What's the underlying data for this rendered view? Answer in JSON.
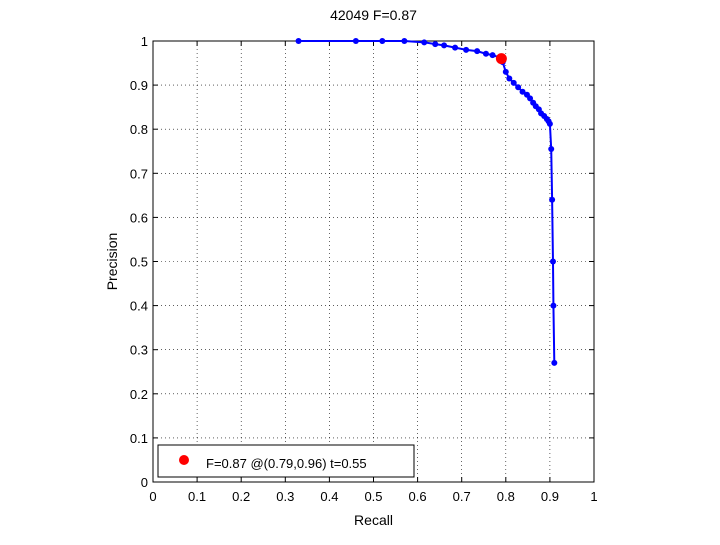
{
  "chart_data": {
    "type": "line",
    "title": "42049 F=0.87",
    "xlabel": "Recall",
    "ylabel": "Precision",
    "xlim": [
      0,
      1
    ],
    "ylim": [
      0,
      1
    ],
    "grid": true,
    "x_ticks": [
      0,
      0.1,
      0.2,
      0.3,
      0.4,
      0.5,
      0.6,
      0.7,
      0.8,
      0.9,
      1
    ],
    "y_ticks": [
      0,
      0.1,
      0.2,
      0.3,
      0.4,
      0.5,
      0.6,
      0.7,
      0.8,
      0.9,
      1
    ],
    "x_tick_labels": [
      "0",
      "0.1",
      "0.2",
      "0.3",
      "0.4",
      "0.5",
      "0.6",
      "0.7",
      "0.8",
      "0.9",
      "1"
    ],
    "y_tick_labels": [
      "0",
      "0.1",
      "0.2",
      "0.3",
      "0.4",
      "0.5",
      "0.6",
      "0.7",
      "0.8",
      "0.9",
      "1"
    ],
    "series": [
      {
        "color": "#0000ff",
        "points": [
          [
            0.33,
            1.0
          ],
          [
            0.46,
            1.0
          ],
          [
            0.52,
            1.0
          ],
          [
            0.57,
            1.0
          ],
          [
            0.615,
            0.997
          ],
          [
            0.64,
            0.993
          ],
          [
            0.66,
            0.99
          ],
          [
            0.685,
            0.985
          ],
          [
            0.71,
            0.98
          ],
          [
            0.735,
            0.977
          ],
          [
            0.755,
            0.971
          ],
          [
            0.77,
            0.968
          ],
          [
            0.785,
            0.963
          ],
          [
            0.793,
            0.952
          ],
          [
            0.8,
            0.93
          ],
          [
            0.808,
            0.915
          ],
          [
            0.818,
            0.905
          ],
          [
            0.828,
            0.895
          ],
          [
            0.838,
            0.885
          ],
          [
            0.848,
            0.878
          ],
          [
            0.855,
            0.87
          ],
          [
            0.862,
            0.86
          ],
          [
            0.868,
            0.852
          ],
          [
            0.875,
            0.845
          ],
          [
            0.88,
            0.836
          ],
          [
            0.887,
            0.83
          ],
          [
            0.893,
            0.823
          ],
          [
            0.897,
            0.818
          ],
          [
            0.9,
            0.812
          ],
          [
            0.903,
            0.755
          ],
          [
            0.905,
            0.64
          ],
          [
            0.907,
            0.5
          ],
          [
            0.908,
            0.4
          ],
          [
            0.91,
            0.27
          ]
        ]
      }
    ],
    "highlight_point": {
      "x": 0.79,
      "y": 0.96,
      "color": "#ff0000"
    },
    "legend": {
      "position": "bottom-left",
      "text": "F=0.87 @(0.79,0.96) t=0.55",
      "marker_color": "#ff0000"
    }
  }
}
